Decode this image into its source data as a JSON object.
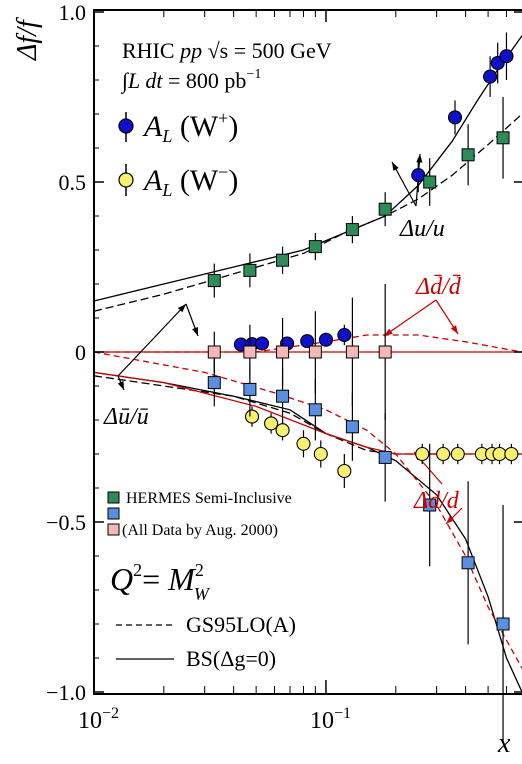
{
  "chart_data": {
    "type": "scatter",
    "xscale": "log",
    "xlim": [
      0.01,
      0.7
    ],
    "ylim": [
      -1.0,
      1.0
    ],
    "xlabel": "x",
    "ylabel": "Δf/f",
    "yticks": [
      {
        "v": 1.0,
        "label": "1.0"
      },
      {
        "v": 0.5,
        "label": "0.5"
      },
      {
        "v": 0.0,
        "label": "0"
      },
      {
        "v": -0.5,
        "label": "−0.5"
      },
      {
        "v": -1.0,
        "label": "−1.0"
      }
    ],
    "xticks": [
      {
        "v": 0.01,
        "base": "10",
        "exp": "−2"
      },
      {
        "v": 0.1,
        "base": "10",
        "exp": "−1"
      }
    ],
    "info": {
      "line1_prefix": "RHIC ",
      "line1_pp": "pp",
      "line1_rest": " √s = 500 GeV",
      "line2_int": "∫",
      "line2_L": "L",
      "line2_dt": " dt",
      "line2_rest": " = 800 pb",
      "line2_exp": "−1"
    },
    "legend_top": [
      {
        "A": "A",
        "sub": "L",
        "arg": " (W",
        "sup": "+",
        "close": ")",
        "color": "#1010c8"
      },
      {
        "A": "A",
        "sub": "L",
        "arg": " (W",
        "sup": "−",
        "close": ")",
        "color": "#f8f070"
      }
    ],
    "legend_bottom": {
      "hermes": "HERMES Semi-Inclusive",
      "alldata": "(All Data by Aug. 2000)",
      "colors": {
        "green": "#2e8b57",
        "blue": "#5a8fe0",
        "pink": "#f4b8b8"
      }
    },
    "q2": {
      "Q": "Q",
      "Qsup": "2",
      "eq": "= ",
      "M": "M",
      "Msup": "2",
      "Msub": "W"
    },
    "line_legend": [
      {
        "label": "GS95LO(A)",
        "style": "dashed"
      },
      {
        "label": "BS(Δg=0)",
        "style": "solid"
      }
    ],
    "annotations": {
      "du_u": "Δu/u",
      "dubar_ubar": "Δū/ū",
      "ddbar_dbar": "Δd̄/d̄",
      "dd_d": "Δd/d"
    },
    "series": [
      {
        "name": "A_L(W+)",
        "marker": "circle",
        "color": "#1010c8",
        "points": [
          [
            0.043,
            0.022
          ],
          [
            0.048,
            0.023
          ],
          [
            0.053,
            0.025
          ],
          [
            0.068,
            0.025
          ],
          [
            0.083,
            0.032
          ],
          [
            0.1,
            0.036
          ],
          [
            0.12,
            0.05
          ],
          [
            0.25,
            0.52
          ],
          [
            0.36,
            0.69
          ],
          [
            0.51,
            0.81
          ],
          [
            0.55,
            0.85
          ],
          [
            0.6,
            0.87
          ]
        ],
        "err": [
          0.02,
          0.02,
          0.02,
          0.02,
          0.02,
          0.02,
          0.03,
          0.05,
          0.05,
          0.06,
          0.06,
          0.07
        ]
      },
      {
        "name": "A_L(W-)",
        "marker": "circle",
        "color": "#f8f070",
        "points": [
          [
            0.048,
            -0.19
          ],
          [
            0.058,
            -0.21
          ],
          [
            0.065,
            -0.23
          ],
          [
            0.08,
            -0.27
          ],
          [
            0.095,
            -0.3
          ],
          [
            0.12,
            -0.35
          ],
          [
            0.26,
            -0.3
          ],
          [
            0.32,
            -0.3
          ],
          [
            0.37,
            -0.3
          ],
          [
            0.47,
            -0.3
          ],
          [
            0.52,
            -0.3
          ],
          [
            0.56,
            -0.3
          ],
          [
            0.63,
            -0.3
          ]
        ],
        "err": [
          0.03,
          0.03,
          0.03,
          0.04,
          0.04,
          0.05,
          0.03,
          0.03,
          0.03,
          0.03,
          0.03,
          0.03,
          0.03
        ]
      },
      {
        "name": "HERMES du/u",
        "marker": "square",
        "color": "#2e8b57",
        "points": [
          [
            0.033,
            0.21
          ],
          [
            0.047,
            0.24
          ],
          [
            0.065,
            0.27
          ],
          [
            0.09,
            0.31
          ],
          [
            0.13,
            0.36
          ],
          [
            0.18,
            0.42
          ],
          [
            0.28,
            0.5
          ],
          [
            0.41,
            0.58
          ],
          [
            0.58,
            0.63
          ]
        ],
        "err": [
          0.05,
          0.05,
          0.04,
          0.04,
          0.04,
          0.05,
          0.07,
          0.09,
          0.12
        ]
      },
      {
        "name": "HERMES dd/d",
        "marker": "square",
        "color": "#5a8fe0",
        "points": [
          [
            0.033,
            -0.09
          ],
          [
            0.047,
            -0.11
          ],
          [
            0.065,
            -0.13
          ],
          [
            0.09,
            -0.17
          ],
          [
            0.13,
            -0.22
          ],
          [
            0.18,
            -0.31
          ],
          [
            0.28,
            -0.45
          ],
          [
            0.41,
            -0.62
          ],
          [
            0.58,
            -0.8
          ]
        ],
        "err": [
          0.07,
          0.08,
          0.08,
          0.09,
          0.1,
          0.13,
          0.18,
          0.24,
          0.35
        ]
      },
      {
        "name": "All data (dbar/dbar)",
        "marker": "square",
        "color": "#f4b8b8",
        "points": [
          [
            0.033,
            0.0
          ],
          [
            0.047,
            0.0
          ],
          [
            0.065,
            0.0
          ],
          [
            0.09,
            0.0
          ],
          [
            0.13,
            0.0
          ],
          [
            0.18,
            0.0
          ]
        ],
        "err": [
          0.06,
          0.08,
          0.1,
          0.12,
          0.16,
          0.2
        ]
      }
    ],
    "curves": [
      {
        "name": "BS du/u",
        "color": "#000000",
        "dash": "",
        "points": [
          [
            0.01,
            0.15
          ],
          [
            0.02,
            0.2
          ],
          [
            0.04,
            0.25
          ],
          [
            0.08,
            0.3
          ],
          [
            0.12,
            0.35
          ],
          [
            0.18,
            0.4
          ],
          [
            0.25,
            0.49
          ],
          [
            0.35,
            0.62
          ],
          [
            0.45,
            0.74
          ],
          [
            0.55,
            0.83
          ],
          [
            0.7,
            0.93
          ]
        ]
      },
      {
        "name": "GS du/u",
        "color": "#000000",
        "dash": "8,4",
        "points": [
          [
            0.01,
            0.12
          ],
          [
            0.02,
            0.17
          ],
          [
            0.04,
            0.23
          ],
          [
            0.08,
            0.29
          ],
          [
            0.12,
            0.35
          ],
          [
            0.18,
            0.4
          ],
          [
            0.25,
            0.45
          ],
          [
            0.35,
            0.52
          ],
          [
            0.5,
            0.61
          ],
          [
            0.7,
            0.7
          ]
        ]
      },
      {
        "name": "BS ubar",
        "color": "#000000",
        "dash": "",
        "points": [
          [
            0.01,
            -0.06
          ],
          [
            0.02,
            -0.09
          ],
          [
            0.04,
            -0.13
          ],
          [
            0.07,
            -0.17
          ],
          [
            0.1,
            -0.24
          ],
          [
            0.15,
            -0.28
          ],
          [
            0.2,
            -0.32
          ],
          [
            0.3,
            -0.42
          ],
          [
            0.4,
            -0.55
          ],
          [
            0.5,
            -0.72
          ],
          [
            0.6,
            -0.9
          ],
          [
            0.7,
            -1.0
          ]
        ]
      },
      {
        "name": "GS ubar",
        "color": "#000000",
        "dash": "8,4",
        "points": [
          [
            0.01,
            -0.07
          ],
          [
            0.02,
            -0.1
          ],
          [
            0.04,
            -0.13
          ],
          [
            0.07,
            -0.18
          ],
          [
            0.1,
            -0.24
          ],
          [
            0.15,
            -0.29
          ],
          [
            0.2,
            -0.3
          ],
          [
            0.25,
            -0.3
          ],
          [
            0.7,
            -0.3
          ]
        ]
      },
      {
        "name": "red flat",
        "color": "#cc0000",
        "dash": "",
        "points": [
          [
            0.01,
            0.0
          ],
          [
            0.7,
            0.0
          ]
        ]
      },
      {
        "name": "GS dbar",
        "color": "#cc0000",
        "dash": "6,4",
        "points": [
          [
            0.01,
            0.0
          ],
          [
            0.05,
            0.0
          ],
          [
            0.1,
            0.03
          ],
          [
            0.15,
            0.05
          ],
          [
            0.25,
            0.05
          ],
          [
            0.4,
            0.03
          ],
          [
            0.7,
            0.0
          ]
        ]
      },
      {
        "name": "BS dd",
        "color": "#cc0000",
        "dash": "",
        "points": [
          [
            0.01,
            -0.06
          ],
          [
            0.02,
            -0.09
          ],
          [
            0.05,
            -0.16
          ],
          [
            0.1,
            -0.24
          ],
          [
            0.15,
            -0.28
          ],
          [
            0.2,
            -0.3
          ],
          [
            0.3,
            -0.3
          ],
          [
            0.7,
            -0.3
          ]
        ]
      },
      {
        "name": "GS dd",
        "color": "#cc0000",
        "dash": "6,4",
        "points": [
          [
            0.01,
            0.0
          ],
          [
            0.03,
            -0.06
          ],
          [
            0.06,
            -0.12
          ],
          [
            0.1,
            -0.17
          ],
          [
            0.15,
            -0.23
          ],
          [
            0.2,
            -0.3
          ],
          [
            0.3,
            -0.45
          ],
          [
            0.4,
            -0.6
          ],
          [
            0.5,
            -0.75
          ],
          [
            0.7,
            -0.93
          ]
        ]
      }
    ]
  }
}
